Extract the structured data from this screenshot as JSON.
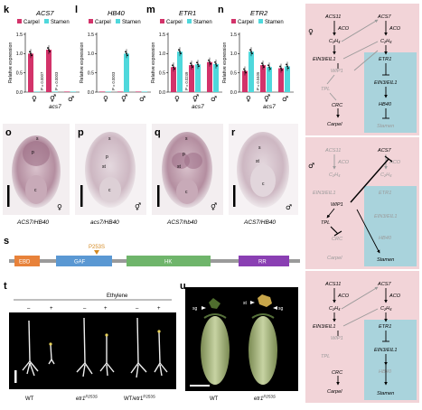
{
  "colors": {
    "carpel": "#d3336a",
    "stamen": "#4fd8dc",
    "pink_bg": "#f2d4d8",
    "blue_bg": "#a9d3dc",
    "grey_text": "#9a9a9a"
  },
  "legend": {
    "carpel": "Carpel",
    "stamen": "Stamen"
  },
  "ylabel": "Relative expression",
  "panels": {
    "k": {
      "letter": "k",
      "title": "ACS7",
      "genotype": "acs7",
      "pvals": [
        "P = 0.0007",
        "P = 0.0003"
      ]
    },
    "l": {
      "letter": "l",
      "title": "HB40",
      "pvals": [
        "P = 0.0003"
      ]
    },
    "m": {
      "letter": "m",
      "title": "ETR1",
      "genotype": "acs7",
      "pvals": [
        "P = 0.0249"
      ]
    },
    "n": {
      "letter": "n",
      "title": "ETR2",
      "genotype": "acs7",
      "pvals": [
        "P = 0.0405"
      ]
    }
  },
  "chart_data": [
    {
      "type": "bar",
      "title": "ACS7",
      "categories": [
        "♀",
        "⚥",
        "♂"
      ],
      "xlabel": "acs7",
      "ylabel": "Relative expression",
      "ylim": [
        0,
        1.5
      ],
      "series": [
        {
          "name": "Carpel",
          "values": [
            1.0,
            1.1,
            0.0
          ]
        },
        {
          "name": "Stamen",
          "values": [
            0.0,
            0.0,
            0.0
          ]
        }
      ]
    },
    {
      "type": "bar",
      "title": "HB40",
      "categories": [
        "♀",
        "⚥",
        "♂"
      ],
      "xlabel": "",
      "ylabel": "Relative expression",
      "ylim": [
        0,
        1.5
      ],
      "series": [
        {
          "name": "Carpel",
          "values": [
            0.0,
            0.0,
            0.0
          ]
        },
        {
          "name": "Stamen",
          "values": [
            0.0,
            1.0,
            0.0
          ]
        }
      ]
    },
    {
      "type": "bar",
      "title": "ETR1",
      "categories": [
        "♀",
        "⚥",
        "♂"
      ],
      "xlabel": "acs7",
      "ylabel": "Relative expression",
      "ylim": [
        0,
        1.5
      ],
      "series": [
        {
          "name": "Carpel",
          "values": [
            0.65,
            0.7,
            0.78
          ]
        },
        {
          "name": "Stamen",
          "values": [
            1.05,
            0.72,
            0.73
          ]
        }
      ]
    },
    {
      "type": "bar",
      "title": "ETR2",
      "categories": [
        "♀",
        "⚥",
        "♂"
      ],
      "xlabel": "acs7",
      "ylabel": "Relative expression",
      "ylim": [
        0,
        1.5
      ],
      "series": [
        {
          "name": "Carpel",
          "values": [
            0.55,
            0.7,
            0.62
          ]
        },
        {
          "name": "Stamen",
          "values": [
            1.05,
            0.65,
            0.67
          ]
        }
      ]
    }
  ],
  "micro": [
    {
      "letter": "o",
      "caption": "ACS7/HB40",
      "sym": "♀"
    },
    {
      "letter": "p",
      "caption": "acs7/HB40",
      "sym": "⚥"
    },
    {
      "letter": "q",
      "caption": "ACS7/hb40",
      "sym": "⚥"
    },
    {
      "letter": "r",
      "caption": "ACS7/HB40",
      "sym": "♂"
    }
  ],
  "tissue_labels": {
    "s": "s",
    "p": "p",
    "st": "st",
    "c": "c"
  },
  "domain_s": {
    "letter": "s",
    "mutation": "P253S",
    "domains": [
      "EBD",
      "GAF",
      "HK",
      "RR"
    ]
  },
  "panel_t": {
    "letter": "t",
    "header": "Ethylene",
    "signs": [
      "–",
      "+",
      "–",
      "+",
      "–",
      "+"
    ],
    "labels": [
      "WT",
      "etr1",
      "WT/etr1"
    ],
    "sup": "P253S"
  },
  "panel_u": {
    "letter": "u",
    "sg": "sg",
    "st": "st",
    "labels": [
      "WT",
      "etr1"
    ],
    "sup": "P253S"
  },
  "diagrams": {
    "v": {
      "letter": "v",
      "sym": "♀"
    },
    "w": {
      "letter": "w",
      "sym": "♂"
    },
    "x": {
      "letter": "x",
      "sym": ""
    }
  },
  "nodes": {
    "acs11": "ACS11",
    "acs7": "ACS7",
    "aco": "ACO",
    "c2h4": "C₂H₄",
    "ein3": "EIN3/EIL1",
    "etr1": "ETR1",
    "wip1": "WIP1",
    "tpl": "TPL",
    "crc": "CRC",
    "hb40": "HB40",
    "carpel": "Carpel",
    "stamen": "Stamen"
  }
}
